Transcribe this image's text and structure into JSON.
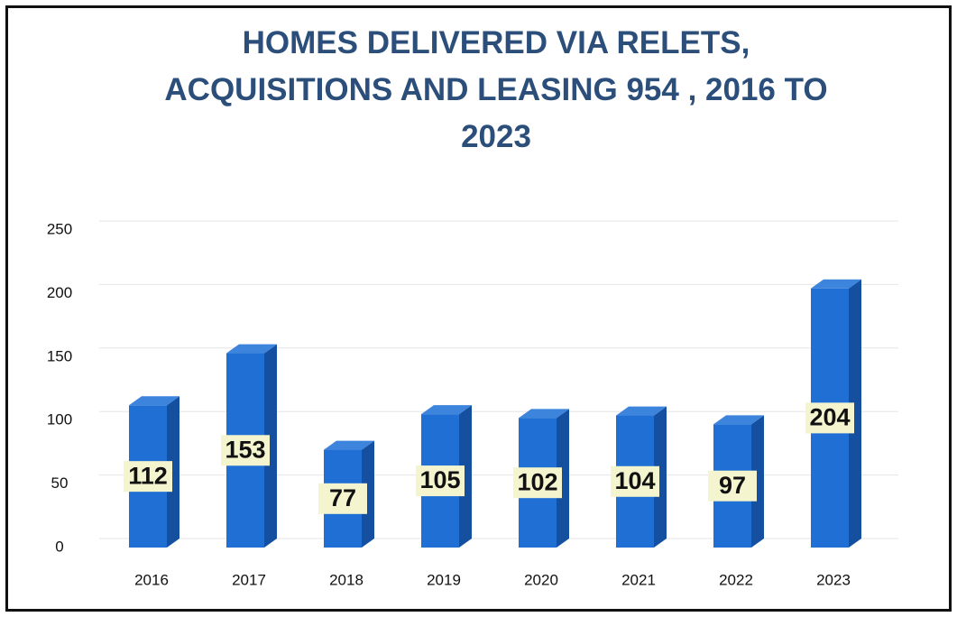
{
  "chart_data": {
    "type": "bar3d",
    "title": "HOMES DELIVERED VIA RELETS, ACQUISITIONS AND LEASING 954 , 2016 TO 2023",
    "categories": [
      "2016",
      "2017",
      "2018",
      "2019",
      "2020",
      "2021",
      "2022",
      "2023"
    ],
    "values": [
      112,
      153,
      77,
      105,
      102,
      104,
      97,
      204
    ],
    "color": "#1f6fd4",
    "ylim": [
      0,
      250
    ],
    "yticks": [
      0,
      50,
      100,
      150,
      200,
      250
    ],
    "grid": true
  }
}
